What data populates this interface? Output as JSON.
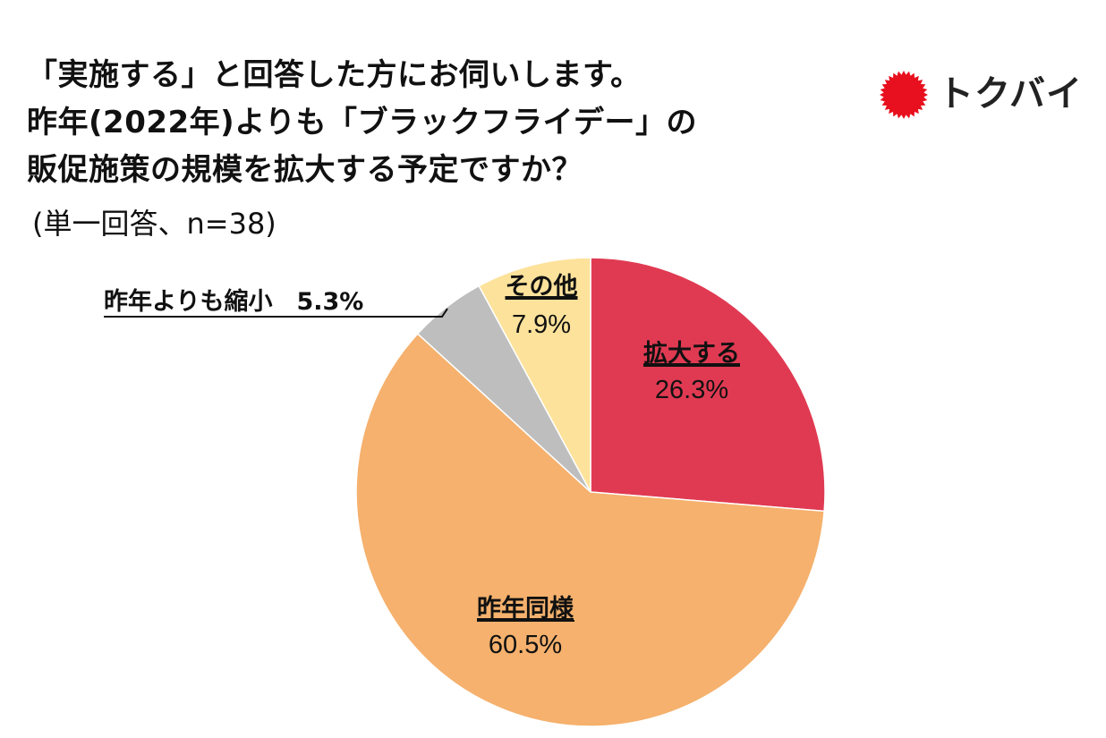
{
  "header": {
    "title_lines": [
      "「実施する」と回答した方にお伺いします。",
      "昨年(2022年)よりも「ブラックフライデー」の",
      "販促施策の規模を拡大する予定ですか？"
    ],
    "subtitle": "(単一回答、n=38)"
  },
  "logo": {
    "text": "トクバイ",
    "mark_color": "#e8101e"
  },
  "chart_data": {
    "type": "pie",
    "title": "「実施する」と回答した方にお伺いします。昨年(2022年)よりも「ブラックフライデー」の販促施策の規模を拡大する予定ですか？",
    "subtitle": "(単一回答、n=38)",
    "start_angle_deg": 0,
    "direction": "clockwise",
    "slices": [
      {
        "name": "拡大する",
        "value": 26.3,
        "label": "26.3%",
        "color": "#e03a52"
      },
      {
        "name": "昨年同様",
        "value": 60.5,
        "label": "60.5%",
        "color": "#f5b16d"
      },
      {
        "name": "昨年よりも縮小",
        "value": 5.3,
        "label": "5.3%",
        "color": "#bebebe"
      },
      {
        "name": "その他",
        "value": 7.9,
        "label": "7.9%",
        "color": "#fde29b"
      }
    ],
    "callout": {
      "slice": "昨年よりも縮小",
      "text": "昨年よりも縮小　5.3%"
    }
  }
}
